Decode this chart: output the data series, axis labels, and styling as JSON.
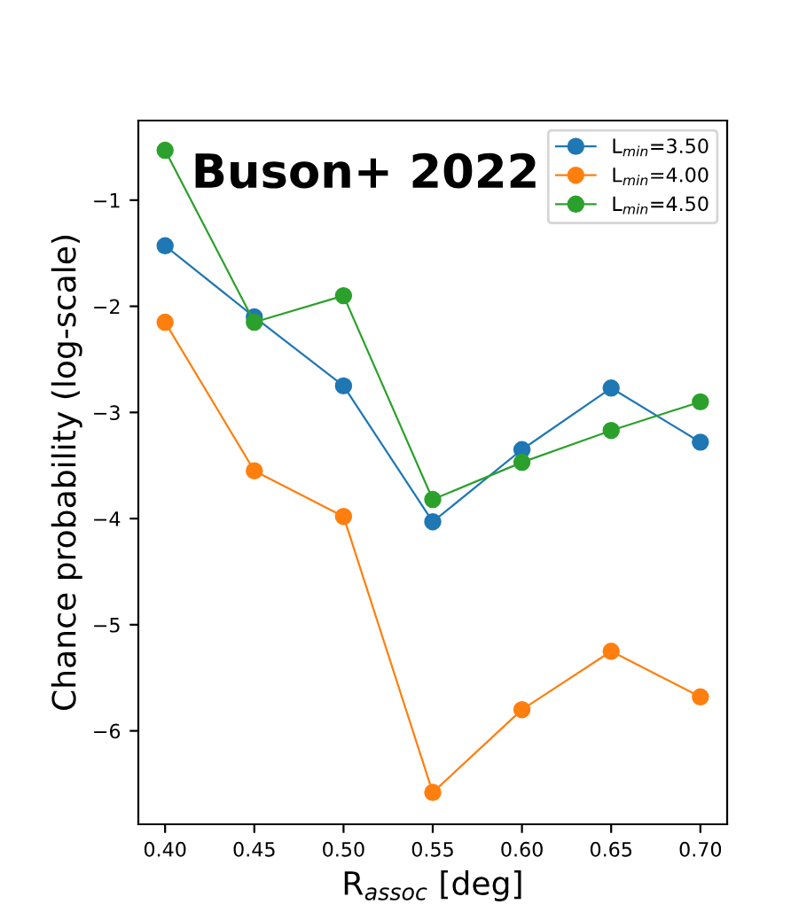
{
  "chart_data": {
    "type": "line",
    "xlabel": "R$_{assoc}$ [deg]",
    "ylabel": "Chance probability (log-scale)",
    "annotations": [
      "Buson+ 2022"
    ],
    "x": [
      0.4,
      0.45,
      0.5,
      0.55,
      0.6,
      0.65,
      0.7
    ],
    "series": [
      {
        "name": "L$_{min}$=3.50",
        "color": "#1f77b4",
        "values": [
          -1.43,
          -2.1,
          -2.75,
          -4.03,
          -3.35,
          -2.77,
          -3.28
        ]
      },
      {
        "name": "L$_{min}$=4.00",
        "color": "#ff7f0e",
        "values": [
          -2.15,
          -3.55,
          -3.98,
          -6.58,
          -5.8,
          -5.25,
          -5.68
        ]
      },
      {
        "name": "L$_{min}$=4.50",
        "color": "#2ca02c",
        "values": [
          -0.53,
          -2.15,
          -1.9,
          -3.82,
          -3.47,
          -3.17,
          -2.9
        ]
      }
    ],
    "xlim": [
      0.385,
      0.715
    ],
    "ylim": [
      -6.88,
      -0.25
    ],
    "xticks": [
      {
        "value": 0.4,
        "label": "0.40"
      },
      {
        "value": 0.45,
        "label": "0.45"
      },
      {
        "value": 0.5,
        "label": "0.50"
      },
      {
        "value": 0.55,
        "label": "0.55"
      },
      {
        "value": 0.6,
        "label": "0.60"
      },
      {
        "value": 0.65,
        "label": "0.65"
      },
      {
        "value": 0.7,
        "label": "0.70"
      }
    ],
    "yticks": [
      {
        "value": -1,
        "label": "−1"
      },
      {
        "value": -2,
        "label": "−2"
      },
      {
        "value": -3,
        "label": "−3"
      },
      {
        "value": -4,
        "label": "−4"
      },
      {
        "value": -5,
        "label": "−5"
      },
      {
        "value": -6,
        "label": "−6"
      }
    ],
    "grid": false,
    "legend": "top right",
    "marker": "circle",
    "line_style": "solid"
  }
}
